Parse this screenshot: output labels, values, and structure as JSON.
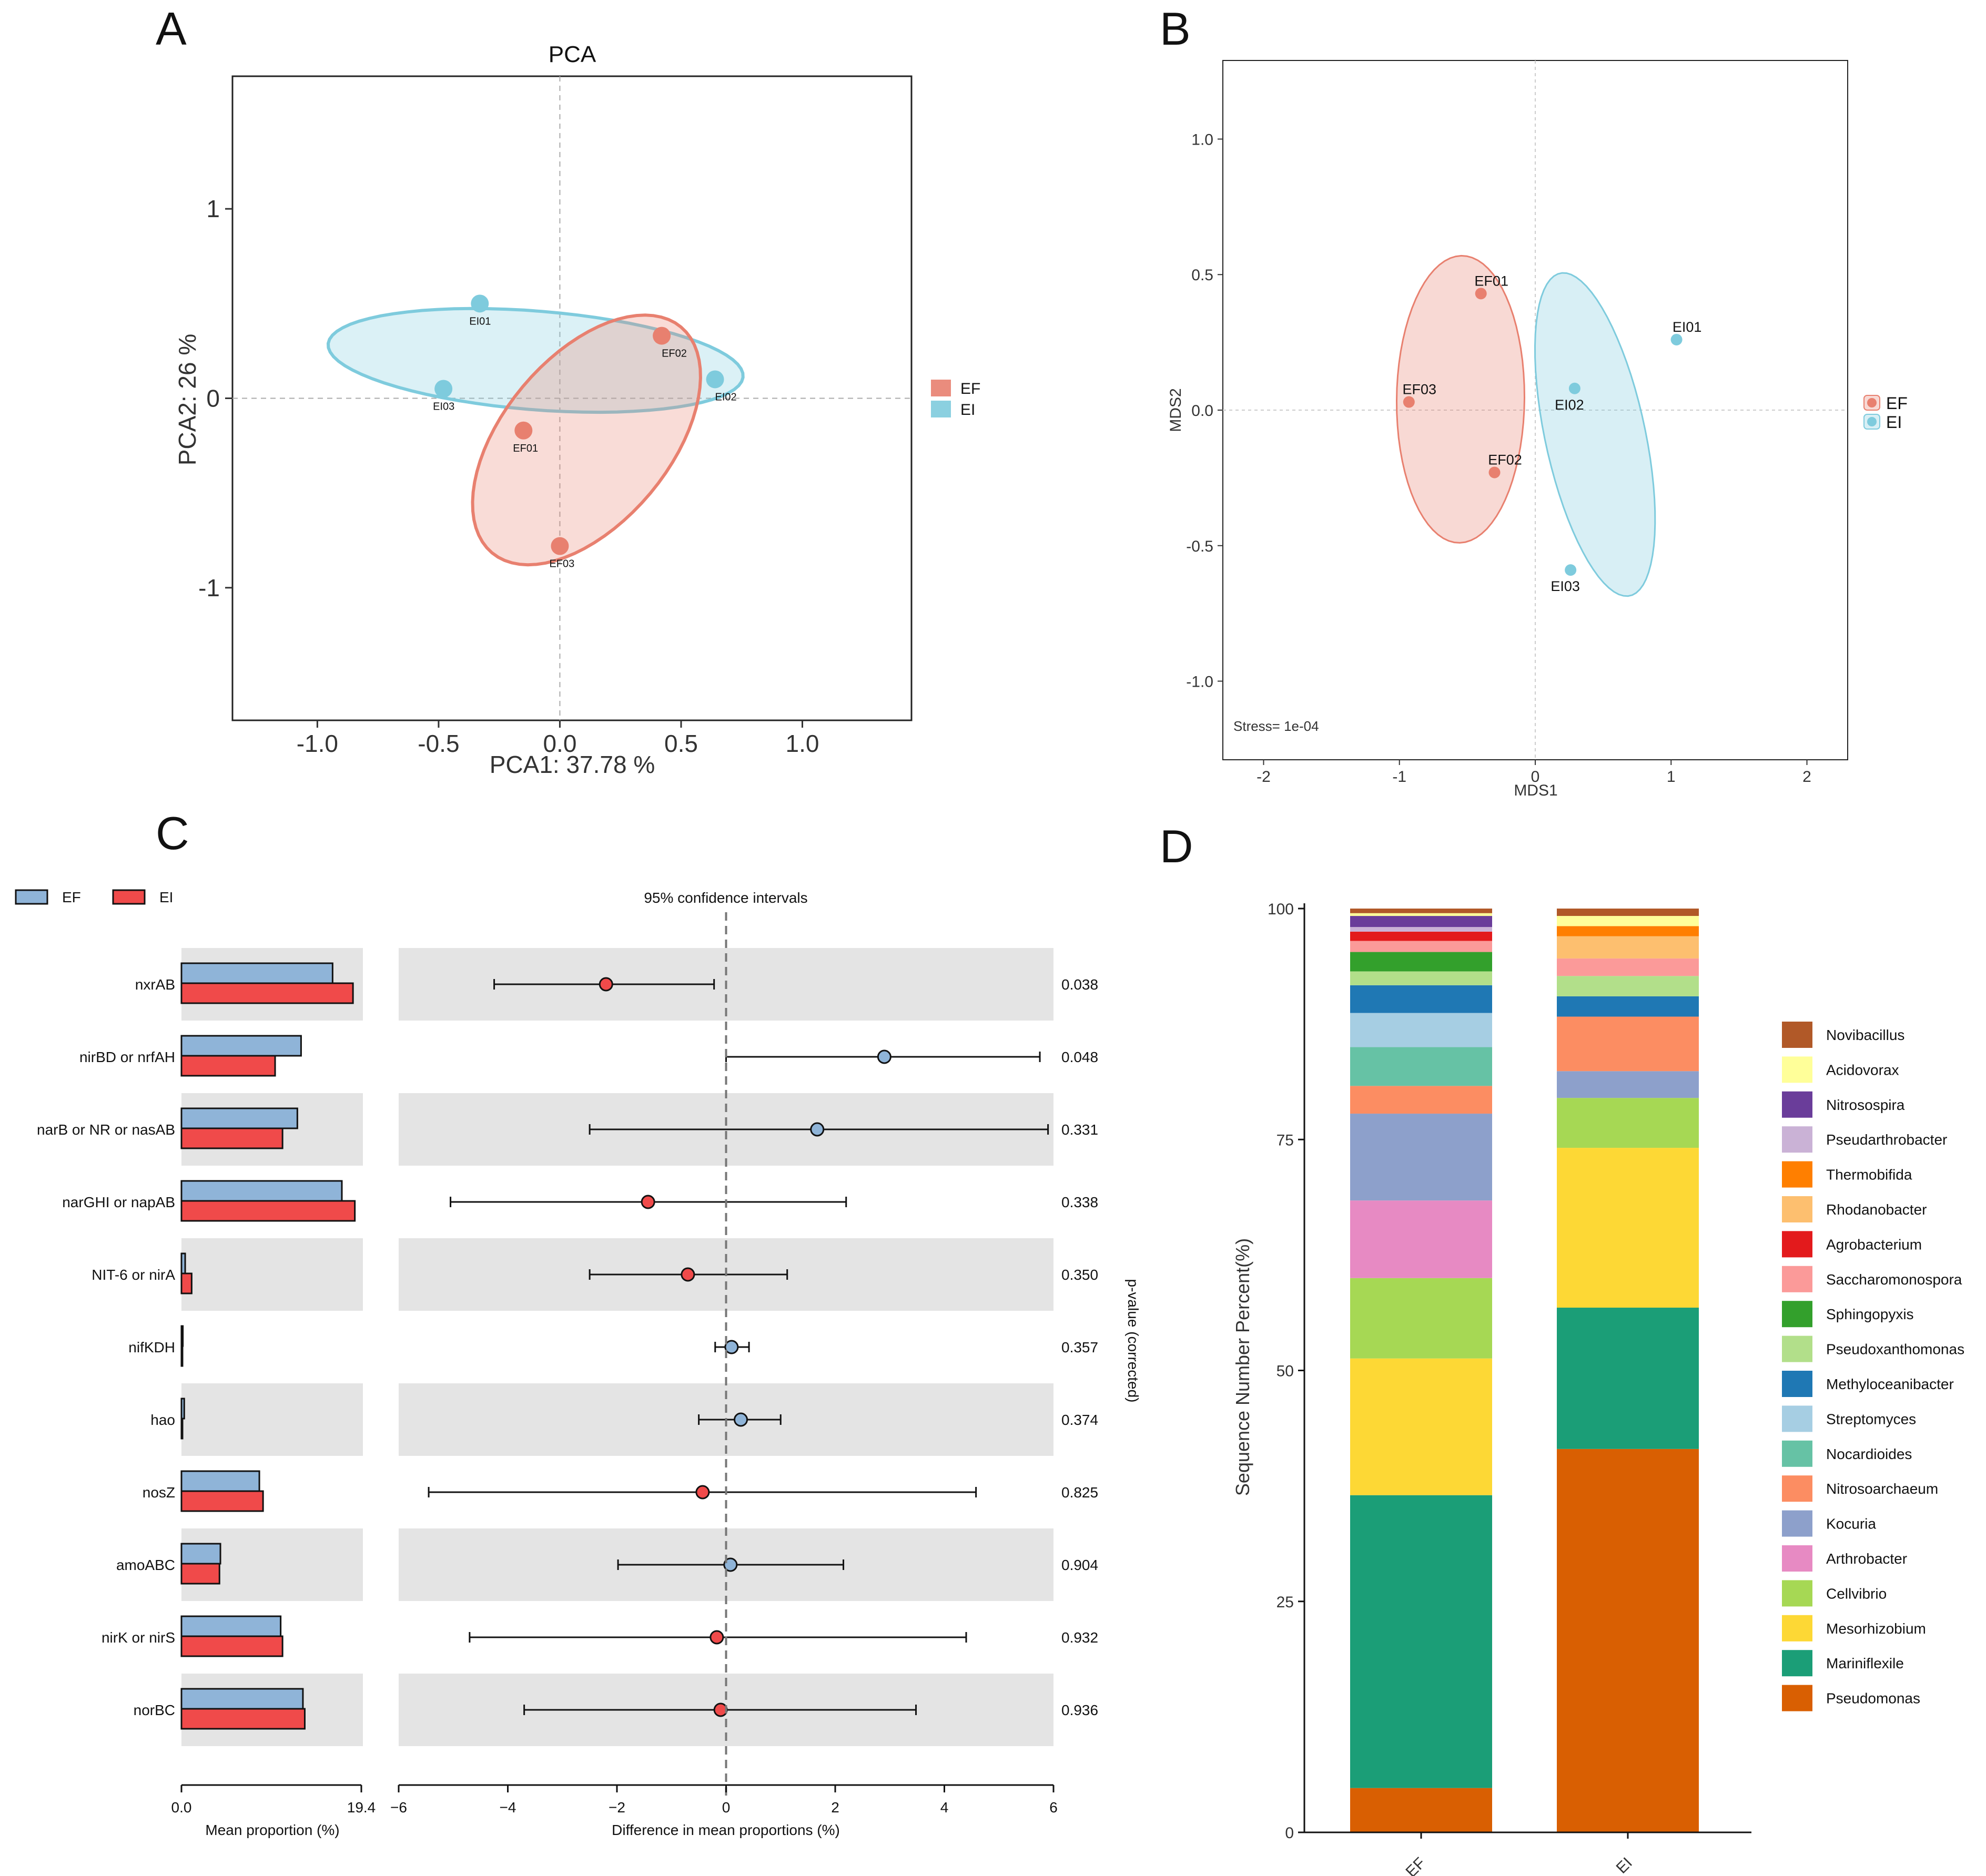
{
  "panels": {
    "a": "A",
    "b": "B",
    "c": "C",
    "d": "D"
  },
  "colors": {
    "EF_pca": "#E8806F",
    "EI_pca": "#7ECBDD",
    "EF_c": "#8FB4D8",
    "EI_c": "#F04A4A"
  },
  "chart_data": [
    {
      "id": "A",
      "type": "scatter",
      "title": "PCA",
      "xlabel": "PCA1: 37.78 %",
      "ylabel": "PCA2: 26 %",
      "xlim": [
        -1.35,
        1.45
      ],
      "ylim": [
        -1.7,
        1.7
      ],
      "xticks": [
        -1.0,
        -0.5,
        0.0,
        0.5,
        1.0
      ],
      "xtick_labels": [
        "-1.0",
        "-0.5",
        "0.0",
        "0.5",
        "1.0"
      ],
      "yticks": [
        1,
        0,
        -1
      ],
      "ytick_labels": [
        "1",
        "0",
        "-1"
      ],
      "legend": [
        "EF",
        "EI"
      ],
      "points": [
        {
          "label": "EI01",
          "group": "EI",
          "x": -0.33,
          "y": 0.5
        },
        {
          "label": "EI02",
          "group": "EI",
          "x": 0.64,
          "y": 0.1
        },
        {
          "label": "EI03",
          "group": "EI",
          "x": -0.48,
          "y": 0.05
        },
        {
          "label": "EF01",
          "group": "EF",
          "x": -0.15,
          "y": -0.17
        },
        {
          "label": "EF02",
          "group": "EF",
          "x": 0.42,
          "y": 0.33
        },
        {
          "label": "EF03",
          "group": "EF",
          "x": 0.0,
          "y": -0.78
        }
      ],
      "ellipses": [
        {
          "group": "EI",
          "cx": -0.1,
          "cy": 0.2,
          "rx": 0.86,
          "ry": 0.26,
          "angle": -6
        },
        {
          "group": "EF",
          "cx": 0.11,
          "cy": -0.22,
          "rx": 0.72,
          "ry": 0.37,
          "angle": 62
        }
      ]
    },
    {
      "id": "B",
      "type": "scatter",
      "xlabel": "MDS1",
      "ylabel": "MDS2",
      "xlim": [
        -2.3,
        2.3
      ],
      "ylim": [
        -1.29,
        1.29
      ],
      "xticks": [
        -2,
        -1,
        0,
        1,
        2
      ],
      "xtick_labels": [
        "-2",
        "-1",
        "0",
        "1",
        "2"
      ],
      "yticks": [
        1.0,
        0.5,
        0.0,
        -0.5,
        -1.0
      ],
      "ytick_labels": [
        "1.0",
        "0.5",
        "0.0",
        "-0.5",
        "-1.0"
      ],
      "annotation": "Stress= 1e-04",
      "legend": [
        "EF",
        "EI"
      ],
      "points": [
        {
          "label": "EF01",
          "group": "EF",
          "x": -0.4,
          "y": 0.43
        },
        {
          "label": "EF02",
          "group": "EF",
          "x": -0.3,
          "y": -0.23
        },
        {
          "label": "EF03",
          "group": "EF",
          "x": -0.93,
          "y": 0.03
        },
        {
          "label": "EI01",
          "group": "EI",
          "x": 1.04,
          "y": 0.26
        },
        {
          "label": "EI02",
          "group": "EI",
          "x": 0.29,
          "y": 0.08
        },
        {
          "label": "EI03",
          "group": "EI",
          "x": 0.26,
          "y": -0.59
        }
      ],
      "ellipses": [
        {
          "group": "EF",
          "cx": -0.55,
          "cy": 0.04,
          "rx": 0.47,
          "ry": 0.53,
          "angle": -5
        },
        {
          "group": "EI",
          "cx": 0.44,
          "cy": -0.09,
          "rx": 0.34,
          "ry": 0.66,
          "angle": 30
        }
      ]
    },
    {
      "id": "C",
      "type": "bar",
      "legend": [
        "EF",
        "EI"
      ],
      "ci_title": "95% confidence intervals",
      "left_xlabel": "Mean proportion (%)",
      "left_xticks": [
        "0.0",
        "19.4"
      ],
      "left_xmax": 19.4,
      "right_xlabel": "Difference in mean proportions (%)",
      "right_xlim": [
        -6,
        6
      ],
      "right_xticks": [
        -6,
        -4,
        -2,
        0,
        2,
        4,
        6
      ],
      "right_xtick_labels": [
        "−6",
        "−4",
        "−2",
        "0",
        "2",
        "4",
        "6"
      ],
      "pvalue_label": "p-value (corrected)",
      "categories": [
        "nxrAB",
        "nirBD or nrfAH",
        "narB or NR or nasAB",
        "narGHI or napAB",
        "NIT-6 or nirA",
        "nifKDH",
        "hao",
        "nosZ",
        "amoABC",
        "nirK or nirS",
        "norBC"
      ],
      "series": [
        {
          "name": "EF",
          "values": [
            16.3,
            12.9,
            12.5,
            17.3,
            0.4,
            0.15,
            0.3,
            8.4,
            4.2,
            10.7,
            13.1
          ]
        },
        {
          "name": "EI",
          "values": [
            18.5,
            10.1,
            10.9,
            18.7,
            1.1,
            0.05,
            0.05,
            8.8,
            4.1,
            10.9,
            13.3
          ]
        }
      ],
      "diff": [
        -2.2,
        2.9,
        1.67,
        -1.43,
        -0.7,
        0.1,
        0.27,
        -0.43,
        0.08,
        -0.17,
        -0.1
      ],
      "ci_low": [
        -4.25,
        0.0,
        -2.5,
        -5.05,
        -2.5,
        -0.2,
        -0.5,
        -5.45,
        -1.98,
        -4.7,
        -3.7
      ],
      "ci_high": [
        -0.22,
        5.75,
        5.9,
        2.2,
        1.12,
        0.42,
        1.0,
        4.58,
        2.15,
        4.4,
        3.48
      ],
      "pvalues": [
        "0.038",
        "0.048",
        "0.331",
        "0.338",
        "0.350",
        "0.357",
        "0.374",
        "0.825",
        "0.904",
        "0.932",
        "0.936"
      ]
    },
    {
      "id": "D",
      "type": "bar",
      "ylabel": "Sequence Number Percent(%)",
      "ylim": [
        0,
        100
      ],
      "yticks": [
        0,
        25,
        50,
        75,
        100
      ],
      "ytick_labels": [
        "0",
        "25",
        "50",
        "75",
        "100"
      ],
      "categories": [
        "EF",
        "EI"
      ],
      "series": [
        {
          "name": "Pseudomonas",
          "color": "#D95F02",
          "values": [
            4.8,
            41.5
          ]
        },
        {
          "name": "Mariniflexile",
          "color": "#1B9E77",
          "values": [
            31.7,
            15.3
          ]
        },
        {
          "name": "Mesorhizobium",
          "color": "#FDD835",
          "values": [
            14.8,
            17.3
          ]
        },
        {
          "name": "Cellvibrio",
          "color": "#A6D854",
          "values": [
            8.7,
            5.4
          ]
        },
        {
          "name": "Arthrobacter",
          "color": "#E78AC3",
          "values": [
            8.4,
            0
          ]
        },
        {
          "name": "Kocuria",
          "color": "#8DA0CB",
          "values": [
            9.4,
            2.9
          ]
        },
        {
          "name": "Nitrosoarchaeum",
          "color": "#FC8D62",
          "values": [
            3.0,
            5.9
          ]
        },
        {
          "name": "Nocardioides",
          "color": "#66C2A5",
          "values": [
            4.2,
            0
          ]
        },
        {
          "name": "Streptomyces",
          "color": "#A6CEE3",
          "values": [
            3.7,
            0
          ]
        },
        {
          "name": "Methyloceanibacter",
          "color": "#1F78B4",
          "values": [
            3.0,
            2.2
          ]
        },
        {
          "name": "Pseudoxanthomonas",
          "color": "#B2DF8A",
          "values": [
            1.5,
            2.2
          ]
        },
        {
          "name": "Sphingopyxis",
          "color": "#33A02C",
          "values": [
            2.1,
            0
          ]
        },
        {
          "name": "Saccharomonospora",
          "color": "#FB9A99",
          "values": [
            1.2,
            1.9
          ]
        },
        {
          "name": "Agrobacterium",
          "color": "#E31A1C",
          "values": [
            1.0,
            0
          ]
        },
        {
          "name": "Rhodanobacter",
          "color": "#FDBF6F",
          "values": [
            0,
            2.4
          ]
        },
        {
          "name": "Thermobifida",
          "color": "#FF7F00",
          "values": [
            0,
            1.1
          ]
        },
        {
          "name": "Pseudarthrobacter",
          "color": "#CAB2D6",
          "values": [
            0.5,
            0
          ]
        },
        {
          "name": "Nitrosospira",
          "color": "#6A3D9A",
          "values": [
            1.2,
            0
          ]
        },
        {
          "name": "Acidovorax",
          "color": "#FFFF99",
          "values": [
            0.3,
            1.1
          ]
        },
        {
          "name": "Novibacillus",
          "color": "#B15928",
          "values": [
            0.5,
            0.8
          ]
        }
      ]
    }
  ]
}
